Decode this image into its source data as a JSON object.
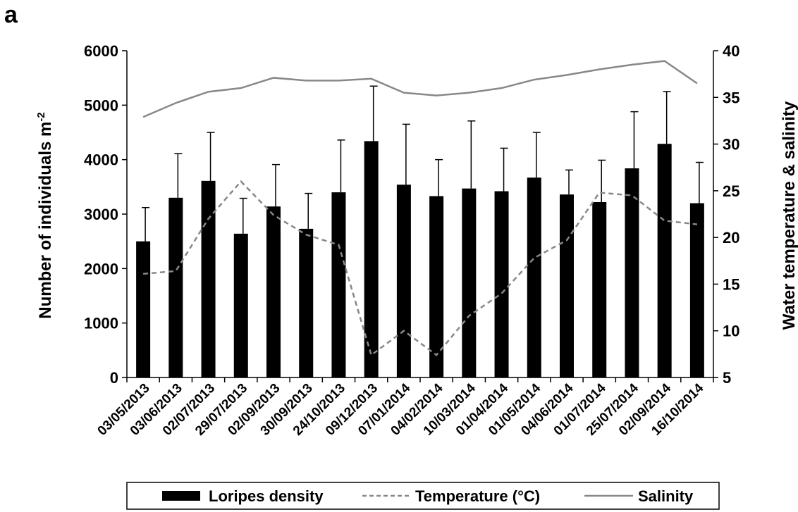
{
  "panel_label": "a",
  "chart_data": {
    "type": "bar",
    "categories": [
      "03/05/2013",
      "03/06/2013",
      "02/07/2013",
      "29/07/2013",
      "02/09/2013",
      "30/09/2013",
      "24/10/2013",
      "09/12/2013",
      "07/01/2014",
      "04/02/2014",
      "10/03/2014",
      "01/04/2014",
      "01/05/2014",
      "04/06/2014",
      "01/07/2014",
      "25/07/2014",
      "02/09/2014",
      "16/10/2014"
    ],
    "series": [
      {
        "name": "Loripes density",
        "type": "bar",
        "axis": "left",
        "values": [
          2500,
          3300,
          3610,
          2640,
          3140,
          2730,
          3400,
          4340,
          3540,
          3330,
          3470,
          3420,
          3670,
          3360,
          3220,
          3840,
          4290,
          3200
        ],
        "error_plus": [
          620,
          810,
          890,
          650,
          770,
          650,
          960,
          1010,
          1110,
          670,
          1240,
          790,
          830,
          450,
          770,
          1040,
          960,
          750
        ],
        "color": "#000000"
      },
      {
        "name": "Temperature (°C)",
        "type": "line",
        "axis": "right",
        "dash": true,
        "values": [
          16.1,
          16.4,
          22.0,
          26.0,
          22.4,
          20.3,
          19.2,
          7.4,
          10.0,
          7.4,
          11.6,
          14.0,
          17.8,
          19.7,
          24.8,
          24.5,
          21.8,
          21.4
        ],
        "color": "#888888"
      },
      {
        "name": "Salinity",
        "type": "line",
        "axis": "right",
        "values": [
          32.9,
          34.4,
          35.6,
          36.0,
          37.1,
          36.8,
          36.8,
          37.0,
          35.5,
          35.2,
          35.5,
          36.0,
          36.9,
          37.4,
          38.0,
          38.5,
          38.9,
          36.5
        ],
        "color": "#888888"
      }
    ],
    "ylabel": "Number of individuals m",
    "ylabel_sup": "-2",
    "y2label": "Water temperature & salinity",
    "ylim": [
      0,
      6000
    ],
    "y2lim": [
      5,
      40
    ],
    "yticks": [
      0,
      1000,
      2000,
      3000,
      4000,
      5000,
      6000
    ],
    "y2ticks": [
      5,
      10,
      15,
      20,
      25,
      30,
      35,
      40
    ],
    "grid": false,
    "legend_position": "bottom"
  }
}
